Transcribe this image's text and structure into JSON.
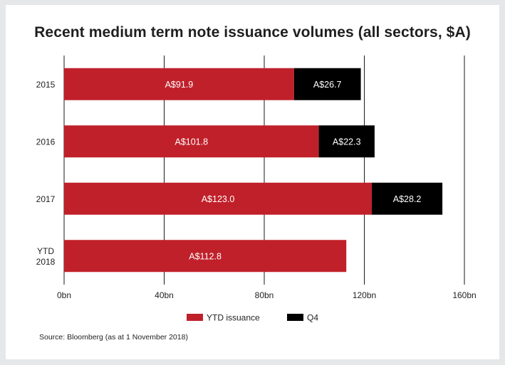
{
  "title": "Recent medium term note issuance volumes (all sectors, $A)",
  "source": "Source: Bloomberg (as at 1 November 2018)",
  "colors": {
    "ytd": "#c0202a",
    "q4": "#000000",
    "grid": "#1a1a1a",
    "background": "#e6e7e8"
  },
  "chart_data": {
    "type": "bar",
    "orientation": "horizontal",
    "stacked": true,
    "categories": [
      [
        "2015"
      ],
      [
        "2016"
      ],
      [
        "2017"
      ],
      [
        "YTD",
        "2018"
      ]
    ],
    "series": [
      {
        "name": "YTD issuance",
        "color": "#c0202a",
        "values": [
          91.9,
          101.8,
          123.0,
          112.8
        ],
        "labels": [
          "A$91.9",
          "A$101.8",
          "A$123.0",
          "A$112.8"
        ]
      },
      {
        "name": "Q4",
        "color": "#000000",
        "values": [
          26.7,
          22.3,
          28.2,
          null
        ],
        "labels": [
          "A$26.7",
          "A$22.3",
          "A$28.2",
          ""
        ]
      }
    ],
    "xlim": [
      0,
      160
    ],
    "xticks": [
      0,
      40,
      80,
      120,
      160
    ],
    "xtick_labels": [
      "0bn",
      "40bn",
      "80bn",
      "120bn",
      "160bn"
    ],
    "grid": "vertical",
    "legend_position": "bottom"
  }
}
